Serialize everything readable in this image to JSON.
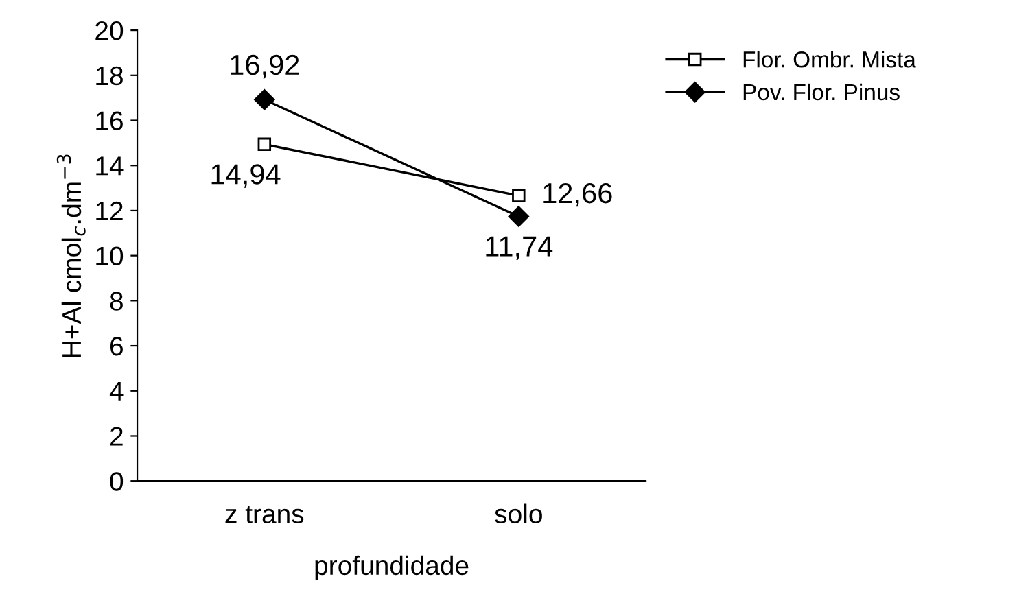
{
  "chart_data": {
    "type": "line",
    "xlabel": "profundidade",
    "ylabel": "H+Al cmol$_{c}$.dm$^{−3}$",
    "categories": [
      "z trans",
      "solo"
    ],
    "series": [
      {
        "name": "Flor. Ombr. Mista",
        "color": "#000000",
        "marker": "square",
        "values": [
          14.94,
          12.66
        ]
      },
      {
        "name": "Pov. Flor. Pinus",
        "color": "#000000",
        "marker": "diamond",
        "values": [
          16.92,
          11.74
        ]
      }
    ],
    "value_labels": [
      [
        "14,94",
        "12,66"
      ],
      [
        "16,92",
        "11,74"
      ]
    ],
    "ylim": [
      0,
      20
    ],
    "yticks": [
      0,
      2,
      4,
      6,
      8,
      10,
      12,
      14,
      16,
      18,
      20
    ],
    "grid": false,
    "legend": "top right",
    "line_style": "solid"
  }
}
